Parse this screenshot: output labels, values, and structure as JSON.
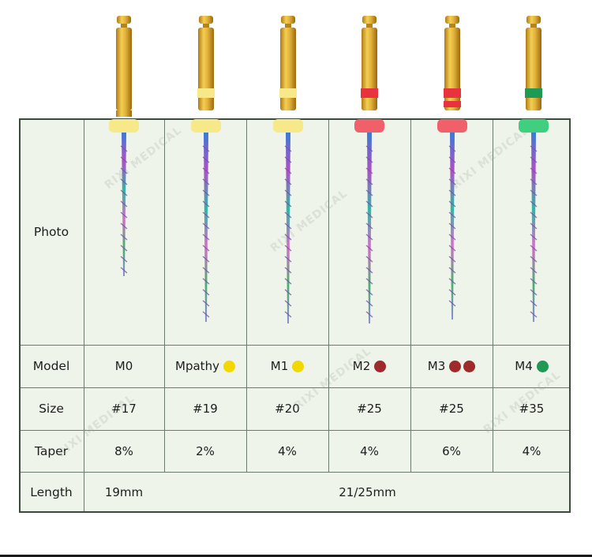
{
  "table": {
    "row_labels": {
      "photo": "Photo",
      "model": "Model",
      "size": "Size",
      "taper": "Taper",
      "length": "Length"
    },
    "columns": [
      {
        "model": "M0",
        "size": "#17",
        "taper": "8%",
        "dots": [],
        "band_color": "#f7e98a",
        "handle_color": "#f7e98a"
      },
      {
        "model": "Mpathy",
        "size": "#19",
        "taper": "2%",
        "dots": [
          "#f2d800"
        ],
        "band_color": "#f7e98a",
        "handle_color": "#f7e98a"
      },
      {
        "model": "M1",
        "size": "#20",
        "taper": "4%",
        "dots": [
          "#f2d800"
        ],
        "band_color": "#f7e98a",
        "handle_color": "#f7e98a"
      },
      {
        "model": "M2",
        "size": "#25",
        "taper": "4%",
        "dots": [
          "#9e2a2b"
        ],
        "band_color": "#e8323d",
        "handle_color": "#f0606a"
      },
      {
        "model": "M3",
        "size": "#25",
        "taper": "6%",
        "dots": [
          "#9e2a2b",
          "#9e2a2b"
        ],
        "band_color": "#e8323d",
        "handle_color": "#f0606a"
      },
      {
        "model": "M4",
        "size": "#35",
        "taper": "4%",
        "dots": [
          "#1f9a55"
        ],
        "band_color": "#1f9a55",
        "handle_color": "#3fcf7e"
      }
    ],
    "length_first": "19mm",
    "length_rest": "21/25mm"
  },
  "watermark": {
    "text": "RIXI MEDICAL"
  },
  "colors": {
    "grid_bg": "#eef4ea",
    "gold": "#d9a52a"
  }
}
